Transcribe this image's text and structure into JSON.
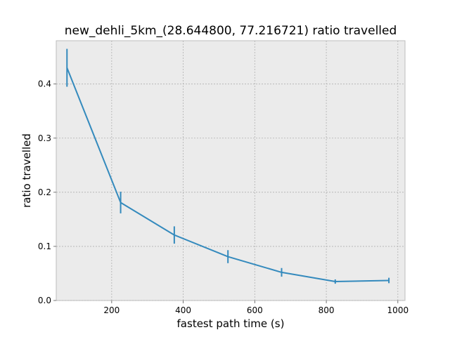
{
  "chart_data": {
    "type": "line",
    "title": "new_dehli_5km_(28.644800, 77.216721) ratio travelled",
    "xlabel": "fastest path time (s)",
    "ylabel": "ratio travelled",
    "xlim": [
      45,
      1020
    ],
    "ylim": [
      0,
      0.4
    ],
    "ylim_display": [
      0,
      0.48
    ],
    "x_ticks": [
      200,
      400,
      600,
      800,
      1000
    ],
    "y_ticks": [
      0.0,
      0.1,
      0.2,
      0.3,
      0.4
    ],
    "x_tick_labels": [
      "200",
      "400",
      "600",
      "800",
      "1000"
    ],
    "y_tick_labels": [
      "0.0",
      "0.1",
      "0.2",
      "0.3",
      "0.4"
    ],
    "grid": true,
    "style": "ggplot-grey-background",
    "series": [
      {
        "color": "#348abd",
        "x": [
          75,
          225,
          375,
          525,
          675,
          825,
          975
        ],
        "y": [
          0.43,
          0.181,
          0.121,
          0.081,
          0.052,
          0.035,
          0.037
        ],
        "yerr": [
          0.035,
          0.02,
          0.016,
          0.012,
          0.008,
          0.004,
          0.005
        ]
      }
    ]
  }
}
